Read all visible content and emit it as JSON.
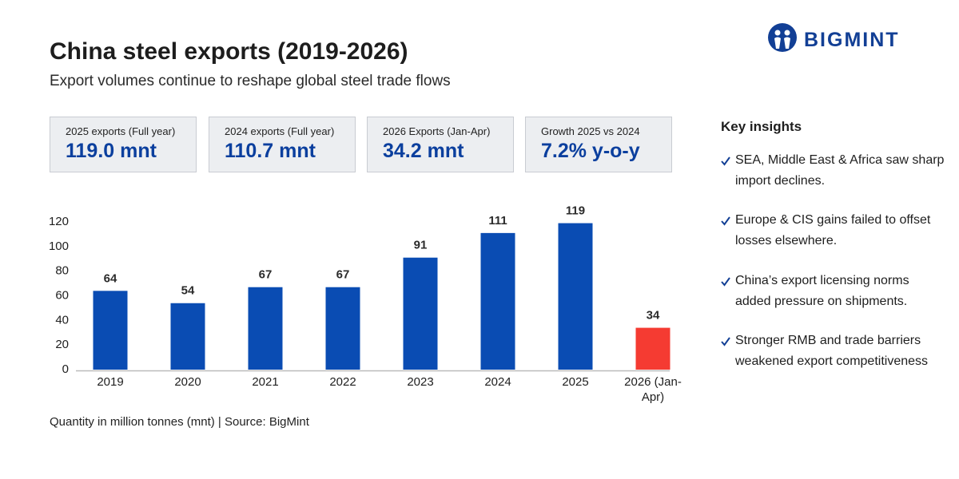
{
  "header": {
    "title": "China steel exports (2019-2026)",
    "subtitle": "Export volumes continue to reshape global steel trade flows"
  },
  "logo": {
    "text": "BIGMINT"
  },
  "kpis": [
    {
      "label": "2025 exports (Full year)",
      "value": "119.0 mnt"
    },
    {
      "label": "2024 exports (Full year)",
      "value": "110.7 mnt"
    },
    {
      "label": "2026 Exports (Jan-Apr)",
      "value": "34.2 mnt"
    },
    {
      "label": "Growth 2025 vs 2024",
      "value": "7.2% y-o-y"
    }
  ],
  "chart_data": {
    "type": "bar",
    "categories": [
      "2019",
      "2020",
      "2021",
      "2022",
      "2023",
      "2024",
      "2025",
      "2026 (Jan-Apr)"
    ],
    "values": [
      64,
      54,
      67,
      67,
      91,
      111,
      119,
      34
    ],
    "colors": [
      "#0a4cb3",
      "#0a4cb3",
      "#0a4cb3",
      "#0a4cb3",
      "#0a4cb3",
      "#0a4cb3",
      "#0a4cb3",
      "#f53b32"
    ],
    "ylim": [
      0,
      120
    ],
    "yticks": [
      0,
      20,
      40,
      60,
      80,
      100,
      120
    ],
    "grid": false,
    "data_labels": true
  },
  "footer": "Quantity in million tonnes (mnt) | Source: BigMint",
  "insights": {
    "title": "Key insights",
    "items": [
      "SEA, Middle East & Africa saw sharp import declines.",
      "Europe & CIS gains failed to offset losses elsewhere.",
      "China’s export licensing norms added pressure on shipments.",
      "Stronger RMB and trade barriers weakened export competitiveness"
    ]
  }
}
